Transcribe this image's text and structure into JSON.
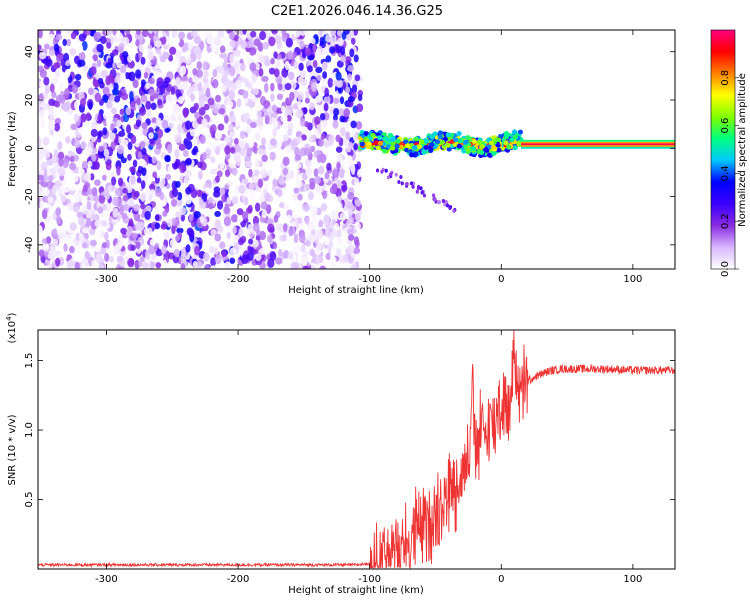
{
  "title": "C2E1.2026.046.14.36.G25",
  "chart_data": [
    {
      "type": "heatmap",
      "xlabel": "Height of straight line (km)",
      "ylabel": "Frequency (Hz)",
      "xlim": [
        -352,
        132
      ],
      "ylim": [
        -50,
        49
      ],
      "xticks": [
        -300,
        -200,
        -100,
        0,
        100
      ],
      "yticks": [
        -40,
        -20,
        0,
        20,
        40
      ],
      "colorbar": {
        "label": "Normalized spectral amplitude",
        "range": [
          0.0,
          1.0
        ],
        "ticks": [
          0.0,
          0.2,
          0.4,
          0.6,
          0.8
        ],
        "tick_labels": [
          "0.0",
          "0.2",
          "0.4",
          "0.6",
          "0.8"
        ],
        "colors": [
          "#ffffff",
          "#d8b8ff",
          "#8a2be2",
          "#3a00ff",
          "#0000ff",
          "#00c8ff",
          "#00ff80",
          "#80ff00",
          "#ffff00",
          "#ff8000",
          "#ff0000",
          "#ff0080"
        ]
      },
      "regions": [
        {
          "name": "noise",
          "x_range": [
            -352,
            -107
          ],
          "freq_range": [
            -50,
            49
          ],
          "amplitude": [
            0.0,
            0.25
          ]
        },
        {
          "name": "signal-transition",
          "x_range": [
            -107,
            15
          ],
          "freq_center": 2,
          "freq_halfwidth": 4,
          "amplitude": [
            0.3,
            1.0
          ]
        },
        {
          "name": "signal-steady",
          "x_range": [
            15,
            132
          ],
          "freq_center": 2,
          "freq_halfwidth": 2,
          "amplitude": [
            0.7,
            1.0
          ]
        }
      ]
    },
    {
      "type": "line",
      "xlabel": "Height of straight line (km)",
      "ylabel": "SNR (10 * v/v)",
      "y_multiplier": "(x10",
      "y_multiplier_exp": "4",
      "xlim": [
        -352,
        132
      ],
      "ylim": [
        0,
        1.72
      ],
      "xticks": [
        -300,
        -200,
        -100,
        0,
        100
      ],
      "yticks": [
        0.5,
        1.0,
        1.5
      ],
      "ytick_labels": [
        "0.5",
        "1.0",
        "1.5"
      ],
      "color": "#ee3333",
      "series": [
        {
          "x": [
            -352,
            -300,
            -200,
            -110,
            -100,
            -90,
            -80,
            -70,
            -60,
            -50,
            -45,
            -40,
            -35,
            -30,
            -25,
            -22,
            -20,
            -18,
            -15,
            -12,
            -10,
            -8,
            -5,
            -3,
            0,
            3,
            5,
            8,
            10,
            12,
            15,
            18,
            20,
            25,
            30,
            35,
            40,
            45,
            50,
            60,
            70,
            80,
            100,
            132
          ],
          "y": [
            0.03,
            0.03,
            0.03,
            0.03,
            0.04,
            0.06,
            0.12,
            0.2,
            0.3,
            0.42,
            0.5,
            0.55,
            0.6,
            0.7,
            0.8,
            1.4,
            0.85,
            0.9,
            1.0,
            0.95,
            1.05,
            1.1,
            1.0,
            1.2,
            1.15,
            1.25,
            1.1,
            1.3,
            1.7,
            1.3,
            1.25,
            1.32,
            1.35,
            1.38,
            1.4,
            1.42,
            1.43,
            1.44,
            1.44,
            1.44,
            1.44,
            1.44,
            1.43,
            1.43
          ]
        }
      ]
    }
  ]
}
